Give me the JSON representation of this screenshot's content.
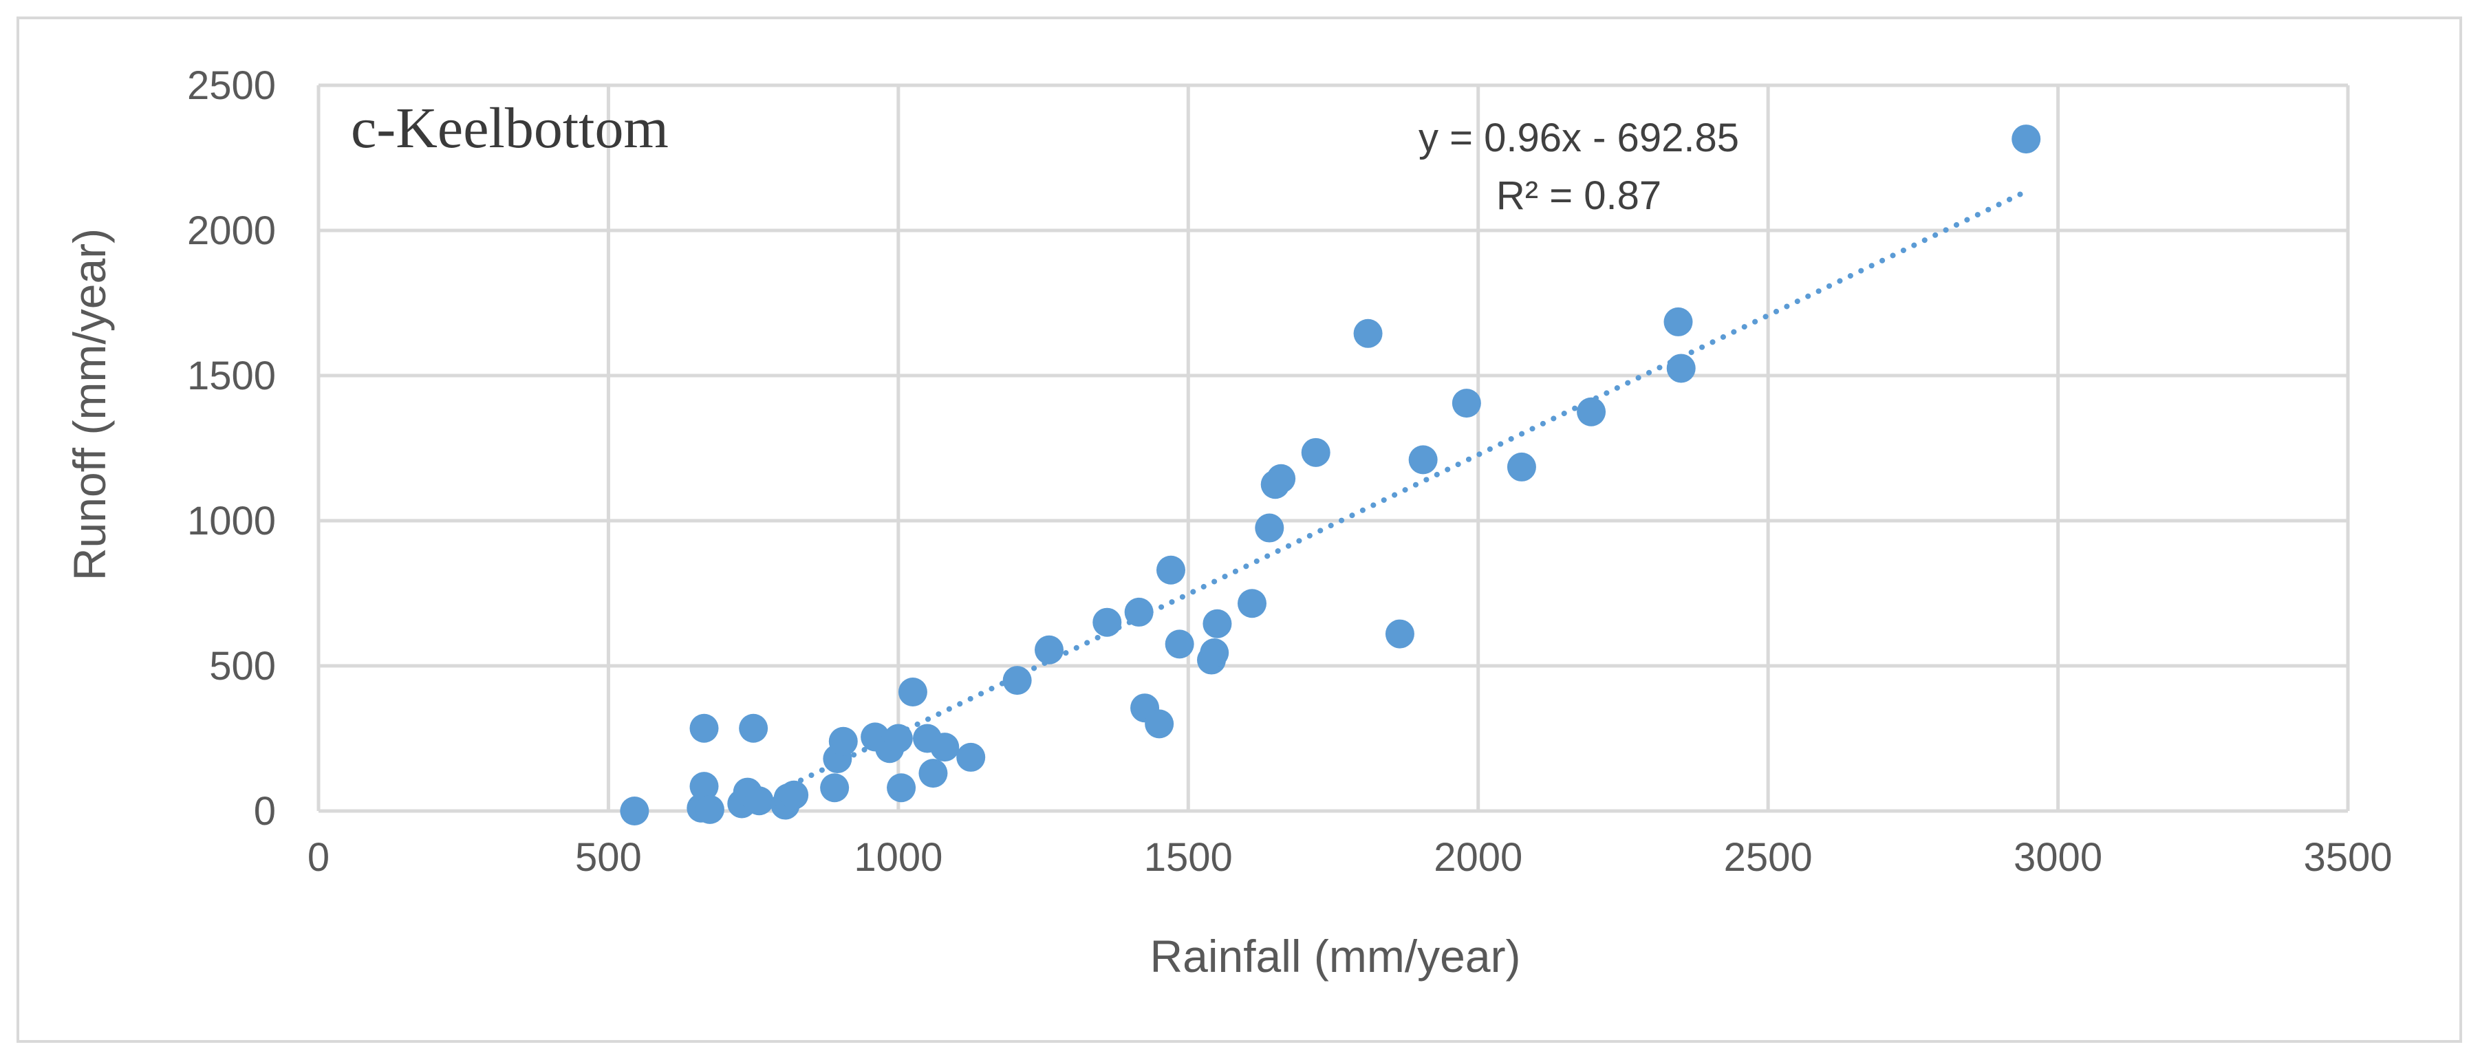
{
  "chart_data": {
    "type": "scatter",
    "title": "",
    "panel_label": "c-Keelbottom",
    "xlabel": "Rainfall (mm/year)",
    "ylabel": "Runoff (mm/year)",
    "xlim": [
      0,
      3500
    ],
    "ylim": [
      0,
      2500
    ],
    "x_ticks": [
      0,
      500,
      1000,
      1500,
      2000,
      2500,
      3000,
      3500
    ],
    "y_ticks": [
      0,
      500,
      1000,
      1500,
      2000,
      2500
    ],
    "grid": true,
    "series": [
      {
        "name": "Runoff",
        "color": "#5b9bd5",
        "points": [
          [
            545,
            0
          ],
          [
            660,
            10
          ],
          [
            665,
            285
          ],
          [
            665,
            85
          ],
          [
            675,
            5
          ],
          [
            730,
            25
          ],
          [
            740,
            65
          ],
          [
            750,
            285
          ],
          [
            760,
            35
          ],
          [
            805,
            20
          ],
          [
            810,
            45
          ],
          [
            820,
            55
          ],
          [
            890,
            80
          ],
          [
            895,
            180
          ],
          [
            905,
            240
          ],
          [
            960,
            255
          ],
          [
            985,
            215
          ],
          [
            1000,
            250
          ],
          [
            1005,
            80
          ],
          [
            1025,
            410
          ],
          [
            1050,
            250
          ],
          [
            1060,
            130
          ],
          [
            1080,
            220
          ],
          [
            1125,
            185
          ],
          [
            1205,
            450
          ],
          [
            1260,
            555
          ],
          [
            1360,
            650
          ],
          [
            1415,
            685
          ],
          [
            1425,
            355
          ],
          [
            1450,
            300
          ],
          [
            1470,
            830
          ],
          [
            1485,
            575
          ],
          [
            1540,
            520
          ],
          [
            1545,
            545
          ],
          [
            1550,
            645
          ],
          [
            1610,
            715
          ],
          [
            1640,
            975
          ],
          [
            1650,
            1125
          ],
          [
            1660,
            1145
          ],
          [
            1720,
            1235
          ],
          [
            1810,
            1645
          ],
          [
            1865,
            610
          ],
          [
            1905,
            1210
          ],
          [
            1980,
            1405
          ],
          [
            2075,
            1185
          ],
          [
            2195,
            1375
          ],
          [
            2345,
            1685
          ],
          [
            2350,
            1525
          ],
          [
            2945,
            2315
          ]
        ]
      }
    ],
    "trendline": {
      "type": "linear",
      "slope": 0.96,
      "intercept": -692.85,
      "x_range": [
        722,
        2945
      ],
      "equation": "y = 0.96x - 692.85",
      "r_squared": "R² = 0.87"
    }
  }
}
